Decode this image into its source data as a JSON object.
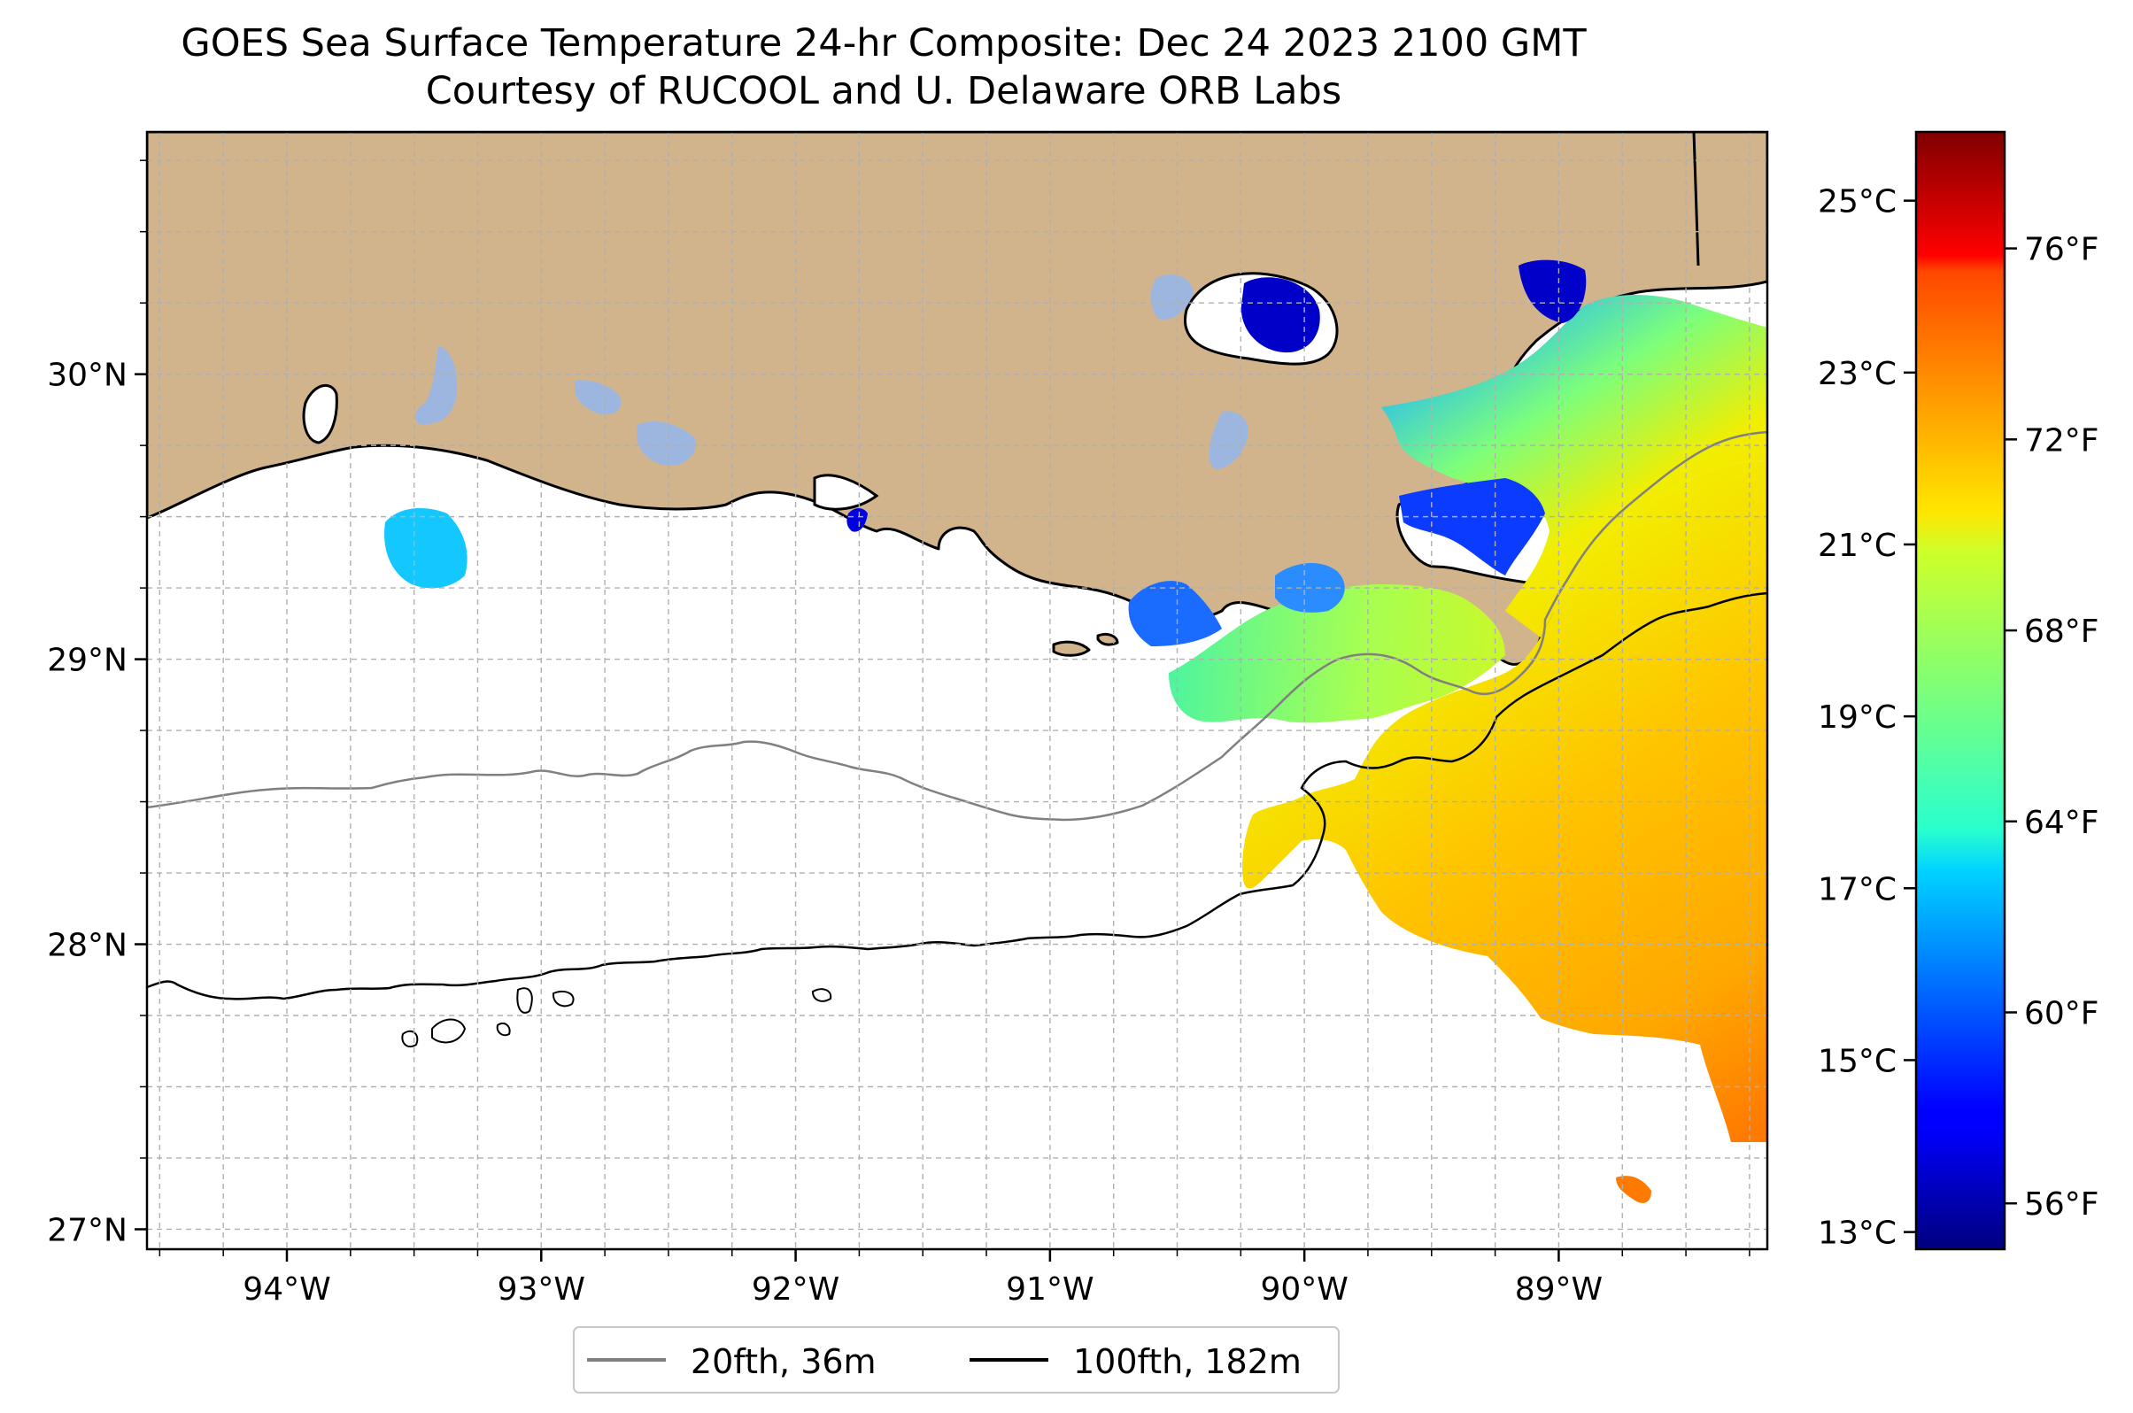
{
  "title": "GOES Sea Surface Temperature 24-hr Composite: Dec 24 2023 2100 GMT",
  "subtitle": "Courtesy of RUCOOL and U. Delaware ORB Labs",
  "map": {
    "extent": {
      "lon_min": -94.55,
      "lon_max": -88.18,
      "lat_min": 26.93,
      "lat_max": 30.85
    },
    "lat_ticks": [
      {
        "value": 30,
        "label": "30°N"
      },
      {
        "value": 29,
        "label": "29°N"
      },
      {
        "value": 28,
        "label": "28°N"
      },
      {
        "value": 27,
        "label": "27°N"
      }
    ],
    "lon_ticks": [
      {
        "value": -94,
        "label": "94°W"
      },
      {
        "value": -93,
        "label": "93°W"
      },
      {
        "value": -92,
        "label": "92°W"
      },
      {
        "value": -91,
        "label": "91°W"
      },
      {
        "value": -90,
        "label": "90°W"
      },
      {
        "value": -89,
        "label": "89°W"
      }
    ],
    "grid": true,
    "land_color": "#d2b48c",
    "lake_color": "#9db6e0",
    "ocean_color": "#ffffff"
  },
  "legend": {
    "items": [
      {
        "label": "20fth, 36m",
        "color": "#808080"
      },
      {
        "label": "100fth, 182m",
        "color": "#000000"
      }
    ],
    "placement": "bottom-center"
  },
  "colorbar": {
    "colormap": "jet",
    "celsius_range": [
      12.8,
      25.8
    ],
    "celsius_ticks": [
      {
        "value": 25,
        "label": "25°C"
      },
      {
        "value": 23,
        "label": "23°C"
      },
      {
        "value": 21,
        "label": "21°C"
      },
      {
        "value": 19,
        "label": "19°C"
      },
      {
        "value": 17,
        "label": "17°C"
      },
      {
        "value": 15,
        "label": "15°C"
      },
      {
        "value": 13,
        "label": "13°C"
      }
    ],
    "fahrenheit_ticks": [
      {
        "value": 76,
        "label": "76°F"
      },
      {
        "value": 72,
        "label": "72°F"
      },
      {
        "value": 68,
        "label": "68°F"
      },
      {
        "value": 64,
        "label": "64°F"
      },
      {
        "value": 60,
        "label": "60°F"
      },
      {
        "value": 56,
        "label": "56°F"
      }
    ]
  }
}
